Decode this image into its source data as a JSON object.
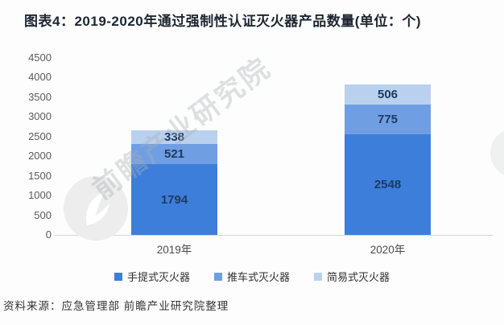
{
  "header": {
    "title": "图表4：2019-2020年通过强制性认证灭火器产品数量(单位：个)"
  },
  "watermark": {
    "brand_text": "前瞻产业研究院"
  },
  "footer": {
    "source": "资料来源：应急管理部 前瞻产业研究院整理"
  },
  "chart_data": {
    "type": "bar",
    "stacked": true,
    "title": "图表4：2019-2020年通过强制性认证灭火器产品数量(单位：个)",
    "categories": [
      "2019年",
      "2020年"
    ],
    "series": [
      {
        "name": "手提式灭火器",
        "color": "#3d7edb",
        "values": [
          1794,
          2548
        ]
      },
      {
        "name": "推车式灭火器",
        "color": "#6f9ee3",
        "values": [
          521,
          775
        ]
      },
      {
        "name": "简易式灭火器",
        "color": "#b9d0ee",
        "values": [
          338,
          506
        ]
      }
    ],
    "totals": [
      2653,
      3829
    ],
    "xlabel": "",
    "ylabel": "",
    "ylim": [
      0,
      4500
    ],
    "ytick_step": 500,
    "grid": false,
    "legend_position": "bottom",
    "value_labels": "inside",
    "label_color": "#1f3a60",
    "axis_text_color": "#5a5a5a"
  }
}
